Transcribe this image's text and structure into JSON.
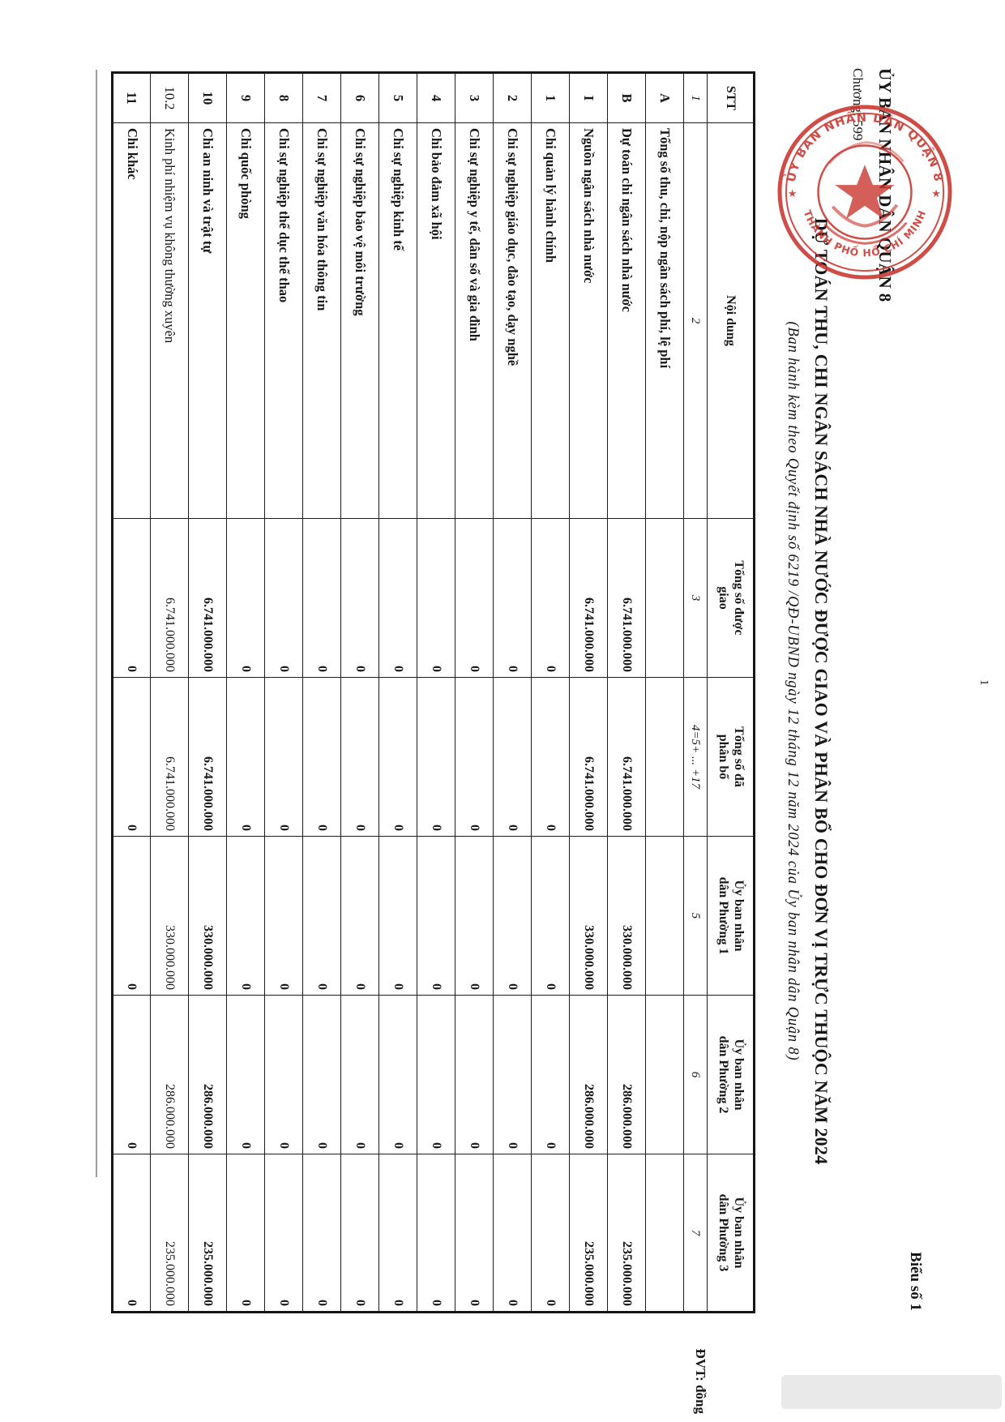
{
  "page": {
    "number": "1"
  },
  "header": {
    "org": "ỦY BAN NHÂN DÂN QUẬN 8",
    "chapter": "Chương: 599",
    "form_no": "Biểu số 1",
    "title": "DỰ TOÁN THU, CHI NGÂN SÁCH NHÀ NƯỚC ĐƯỢC GIAO VÀ PHÂN BỔ CHO ĐƠN VỊ TRỰC THUỘC NĂM 2024",
    "subtitle": "(Ban hành kèm theo Quyết định số 6219 /QĐ-UBND ngày 12 tháng 12 năm 2024 của Ủy ban nhân dân Quận 8)",
    "unit": "ĐVT: đồng"
  },
  "seal": {
    "ring_top": "ỦY BAN NHÂN DÂN QUẬN 8",
    "ring_bottom": "THÀNH PHỐ HỒ CHÍ MINH",
    "star": "★",
    "color": "#c9352e"
  },
  "table": {
    "columns": [
      {
        "label": "STT",
        "index": "1"
      },
      {
        "label": "Nội dung",
        "index": "2"
      },
      {
        "label": "Tổng số được\ngiao",
        "index": "3"
      },
      {
        "label": "Tổng số đã\nphân bổ",
        "index": "4=5+ ... +17"
      },
      {
        "label": "Ủy ban nhân\ndân Phường 1",
        "index": "5"
      },
      {
        "label": "Ủy ban nhân\ndân Phường 2",
        "index": "6"
      },
      {
        "label": "Ủy ban nhân\ndân Phường 3",
        "index": "7"
      }
    ],
    "rows": [
      {
        "stt": "A",
        "label": "Tổng số thu, chi, nộp ngân sách phí, lệ phí",
        "bold": true,
        "values": [
          "",
          "",
          "",
          "",
          ""
        ]
      },
      {
        "stt": "B",
        "label": "Dự toán chi ngân sách nhà nước",
        "bold": true,
        "values": [
          "6.741.000.000",
          "6.741.000.000",
          "330.000.000",
          "286.000.000",
          "235.000.000"
        ]
      },
      {
        "stt": "I",
        "label": "Nguồn ngân sách nhà nước",
        "bold": true,
        "values": [
          "6.741.000.000",
          "6.741.000.000",
          "330.000.000",
          "286.000.000",
          "235.000.000"
        ]
      },
      {
        "stt": "1",
        "label": "Chi quản lý hành chính",
        "bold": true,
        "values": [
          "0",
          "0",
          "0",
          "0",
          "0"
        ]
      },
      {
        "stt": "2",
        "label": "Chi sự nghiệp giáo dục, đào tạo, dạy nghề",
        "bold": true,
        "values": [
          "0",
          "0",
          "0",
          "0",
          "0"
        ]
      },
      {
        "stt": "3",
        "label": "Chi sự nghiệp y tế, dân số và gia đình",
        "bold": true,
        "values": [
          "0",
          "0",
          "0",
          "0",
          "0"
        ]
      },
      {
        "stt": "4",
        "label": "Chi bảo đảm xã hội",
        "bold": true,
        "values": [
          "0",
          "0",
          "0",
          "0",
          "0"
        ]
      },
      {
        "stt": "5",
        "label": "Chi sự nghiệp kinh tế",
        "bold": true,
        "values": [
          "0",
          "0",
          "0",
          "0",
          "0"
        ]
      },
      {
        "stt": "6",
        "label": "Chi sự nghiệp bảo vệ môi trường",
        "bold": true,
        "values": [
          "0",
          "0",
          "0",
          "0",
          "0"
        ]
      },
      {
        "stt": "7",
        "label": "Chi sự nghiệp văn hóa thông tin",
        "bold": true,
        "values": [
          "0",
          "0",
          "0",
          "0",
          "0"
        ]
      },
      {
        "stt": "8",
        "label": "Chi sự nghiệp thể dục thể thao",
        "bold": true,
        "values": [
          "0",
          "0",
          "0",
          "0",
          "0"
        ]
      },
      {
        "stt": "9",
        "label": "Chi quốc phòng",
        "bold": true,
        "values": [
          "0",
          "0",
          "0",
          "0",
          "0"
        ]
      },
      {
        "stt": "10",
        "label": "Chi an ninh và trật tự",
        "bold": true,
        "values": [
          "6.741.000.000",
          "6.741.000.000",
          "330.000.000",
          "286.000.000",
          "235.000.000"
        ]
      },
      {
        "stt": "10.2",
        "label": "Kinh phí nhiệm vụ không thường xuyên",
        "bold": false,
        "values": [
          "6.741.000.000",
          "6.741.000.000",
          "330.000.000",
          "286.000.000",
          "235.000.000"
        ]
      },
      {
        "stt": "11",
        "label": "Chi khác",
        "bold": true,
        "values": [
          "0",
          "0",
          "0",
          "0",
          "0"
        ]
      }
    ]
  }
}
